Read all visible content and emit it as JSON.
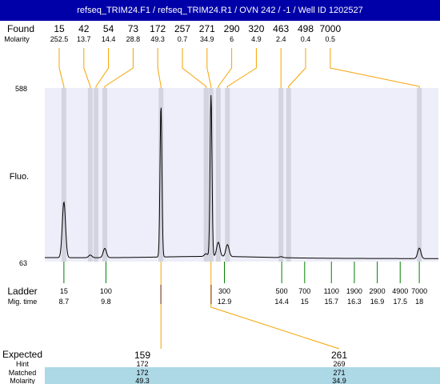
{
  "title": "refseq_TRIM24.F1 / refseq_TRIM24.R1 / OVN 242 / -1 / Well ID 1202527",
  "colors": {
    "title_bg": "#0000a8",
    "plot_bg": "#eeeefa",
    "peak_band": "#d4d4e0",
    "trace": "#000000",
    "connector": "#f5a300",
    "ladder_tick": "#008000",
    "marker": "#0000cc",
    "matched_row_bg": "#add8e6"
  },
  "labels": {
    "found": "Found",
    "molarity": "Molarity",
    "fluo": "Fluo.",
    "ladder": "Ladder",
    "mig_time": "Mig. time",
    "expected": "Expected",
    "hint": "Hint",
    "matched": "Matched",
    "molarity_bottom": "Molarity"
  },
  "chart_data": {
    "type": "line",
    "title": "refseq_TRIM24.F1 / refseq_TRIM24.R1 / OVN 242 / -1 / Well ID 1202527",
    "ylabel": "Fluo.",
    "xlabel": "Mig. time",
    "ylim": [
      63,
      588
    ],
    "y_ticks": [
      "588",
      "63"
    ],
    "xlim": [
      8.2,
      18.5
    ],
    "found_peaks": [
      {
        "size": "15",
        "molarity": "252.5",
        "time": 8.7,
        "height": 240
      },
      {
        "size": "42",
        "molarity": "13.7",
        "time": 9.39,
        "height": 80
      },
      {
        "size": "54",
        "molarity": "14.4",
        "time": 9.54,
        "height": 72
      },
      {
        "size": "73",
        "molarity": "28.8",
        "time": 9.77,
        "height": 100
      },
      {
        "size": "172",
        "molarity": "49.3",
        "time": 11.24,
        "height": 530
      },
      {
        "size": "257",
        "molarity": "0.7",
        "time": 12.42,
        "height": 80
      },
      {
        "size": "271",
        "molarity": "34.9",
        "time": 12.55,
        "height": 560
      },
      {
        "size": "290",
        "molarity": "6",
        "time": 12.74,
        "height": 115
      },
      {
        "size": "320",
        "molarity": "4.9",
        "time": 12.98,
        "height": 108
      },
      {
        "size": "463",
        "molarity": "2.4",
        "time": 14.38,
        "height": 75
      },
      {
        "size": "498",
        "molarity": "0.4",
        "time": 14.58,
        "height": 72
      },
      {
        "size": "7000",
        "molarity": "0.5",
        "time": 18.0,
        "height": 104
      }
    ],
    "ladder": [
      {
        "size": "15",
        "time": "8.7"
      },
      {
        "size": "100",
        "time": "9.8"
      },
      {
        "size": "300",
        "time": "12.9"
      },
      {
        "size": "500",
        "time": "14.4"
      },
      {
        "size": "700",
        "time": "15"
      },
      {
        "size": "1100",
        "time": "15.7"
      },
      {
        "size": "1900",
        "time": "16.3"
      },
      {
        "size": "2900",
        "time": "16.9"
      },
      {
        "size": "4900",
        "time": "17.5"
      },
      {
        "size": "7000",
        "time": "18"
      }
    ],
    "expected": [
      {
        "size": "159",
        "hint": "172",
        "matched": "172",
        "molarity": "49.3",
        "time": 11.24
      },
      {
        "size": "261",
        "hint": "269",
        "matched": "271",
        "molarity": "34.9",
        "time": 12.55
      }
    ]
  }
}
